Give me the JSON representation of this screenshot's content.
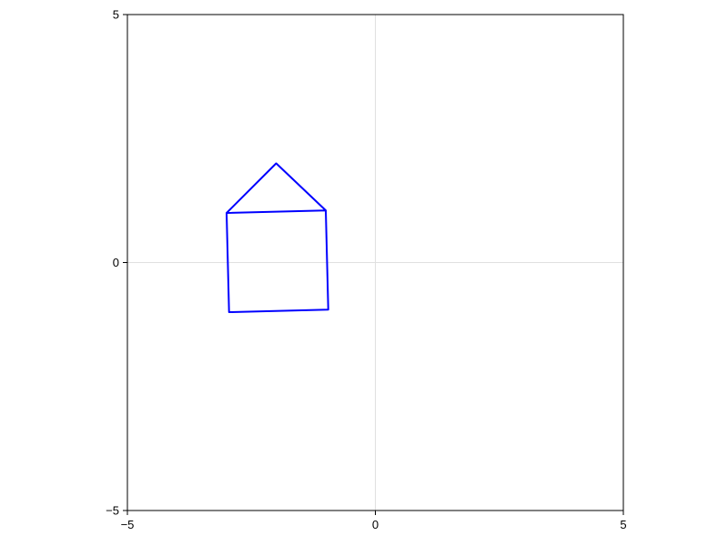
{
  "chart_data": {
    "type": "line",
    "title": "",
    "xlabel": "",
    "ylabel": "",
    "xlim": [
      -5,
      5
    ],
    "ylim": [
      -5,
      5
    ],
    "x_ticks": [
      -5,
      0,
      5
    ],
    "y_ticks": [
      -5,
      0,
      5
    ],
    "x_tick_labels": [
      "−5",
      "0",
      "5"
    ],
    "y_tick_labels": [
      "−5",
      "0",
      "5"
    ],
    "grid": true,
    "aspect": "equal",
    "series": [
      {
        "color": "#0000ff",
        "points": [
          [
            -3.0,
            1.0
          ],
          [
            -1.0,
            1.05
          ],
          [
            -0.95,
            -0.95
          ],
          [
            -2.95,
            -1.0
          ],
          [
            -3.0,
            1.0
          ],
          [
            -2.0,
            2.0
          ],
          [
            -1.0,
            1.05
          ]
        ]
      }
    ]
  }
}
